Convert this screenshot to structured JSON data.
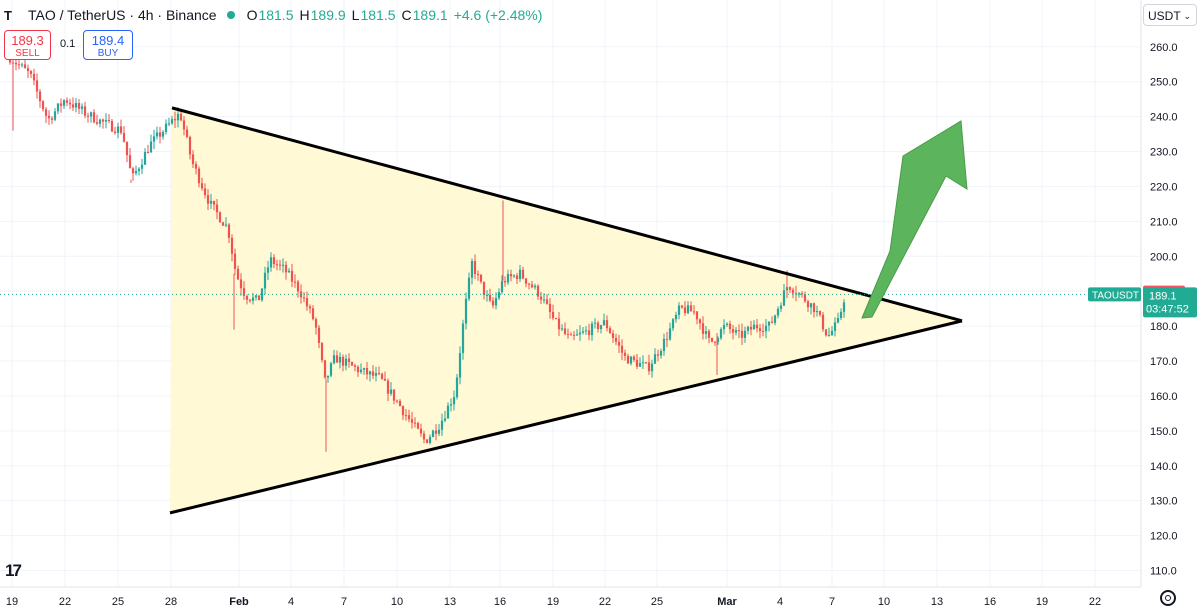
{
  "header": {
    "logo_text": "T",
    "symbol": "TAO / TetherUS · 4h · Binance",
    "ohlc": [
      {
        "label": "O",
        "value": "181.5"
      },
      {
        "label": "H",
        "value": "189.9"
      },
      {
        "label": "L",
        "value": "181.5"
      },
      {
        "label": "C",
        "value": "189.1"
      }
    ],
    "change": "+4.6 (+2.48%)"
  },
  "trade": {
    "sell_price": "189.3",
    "sell_label": "SELL",
    "spread": "0.1",
    "buy_price": "189.4",
    "buy_label": "BUY"
  },
  "currency": "USDT",
  "colors": {
    "up": "#26a69a",
    "down": "#ef5350",
    "triangle_fill": "#fff9d6",
    "arrow": "#5cb55c",
    "price_tag": "#22ab94",
    "sell_tag": "#f7525f"
  },
  "chart_data": {
    "type": "candlestick",
    "yaxis": {
      "range": [
        105,
        265
      ],
      "ticks": [
        110,
        120,
        130,
        140,
        150,
        160,
        170,
        180,
        190,
        200,
        210,
        220,
        230,
        240,
        250,
        260
      ]
    },
    "xaxis": {
      "range": [
        0,
        1137
      ],
      "ticks": [
        "19",
        "22",
        "25",
        "28",
        "Feb",
        "4",
        "7",
        "10",
        "13",
        "16",
        "19",
        "22",
        "25",
        "Mar",
        "4",
        "7",
        "10",
        "13",
        "16",
        "19",
        "22"
      ]
    },
    "price_labels": {
      "sell": "189.3",
      "last": "189.1",
      "symbol": "TAOUSDT",
      "countdown": "03:47:52"
    },
    "triangle": {
      "upper": [
        [
          172,
          242.5
        ],
        [
          962,
          181.5
        ]
      ],
      "lower": [
        [
          170,
          126.5
        ],
        [
          962,
          181.5
        ]
      ]
    },
    "key_points": [
      {
        "x": 10,
        "y": 257
      },
      {
        "x": 30,
        "y": 252
      },
      {
        "x": 48,
        "y": 239
      },
      {
        "x": 65,
        "y": 245
      },
      {
        "x": 85,
        "y": 241
      },
      {
        "x": 105,
        "y": 238
      },
      {
        "x": 122,
        "y": 236
      },
      {
        "x": 132,
        "y": 222
      },
      {
        "x": 150,
        "y": 232
      },
      {
        "x": 170,
        "y": 238
      },
      {
        "x": 180,
        "y": 241
      },
      {
        "x": 192,
        "y": 227
      },
      {
        "x": 210,
        "y": 215
      },
      {
        "x": 228,
        "y": 208
      },
      {
        "x": 236,
        "y": 195
      },
      {
        "x": 245,
        "y": 189
      },
      {
        "x": 258,
        "y": 187
      },
      {
        "x": 270,
        "y": 199
      },
      {
        "x": 285,
        "y": 196
      },
      {
        "x": 300,
        "y": 190
      },
      {
        "x": 315,
        "y": 181
      },
      {
        "x": 325,
        "y": 164
      },
      {
        "x": 335,
        "y": 171
      },
      {
        "x": 348,
        "y": 169
      },
      {
        "x": 362,
        "y": 167
      },
      {
        "x": 380,
        "y": 165
      },
      {
        "x": 398,
        "y": 158
      },
      {
        "x": 412,
        "y": 152
      },
      {
        "x": 425,
        "y": 147
      },
      {
        "x": 440,
        "y": 152
      },
      {
        "x": 455,
        "y": 161
      },
      {
        "x": 465,
        "y": 185
      },
      {
        "x": 472,
        "y": 198
      },
      {
        "x": 482,
        "y": 191
      },
      {
        "x": 492,
        "y": 185
      },
      {
        "x": 503,
        "y": 193
      },
      {
        "x": 520,
        "y": 195
      },
      {
        "x": 540,
        "y": 189
      },
      {
        "x": 555,
        "y": 181
      },
      {
        "x": 570,
        "y": 176
      },
      {
        "x": 590,
        "y": 179
      },
      {
        "x": 605,
        "y": 181
      },
      {
        "x": 625,
        "y": 171
      },
      {
        "x": 648,
        "y": 168
      },
      {
        "x": 665,
        "y": 176
      },
      {
        "x": 680,
        "y": 185
      },
      {
        "x": 695,
        "y": 184
      },
      {
        "x": 710,
        "y": 175
      },
      {
        "x": 725,
        "y": 180
      },
      {
        "x": 740,
        "y": 177
      },
      {
        "x": 755,
        "y": 180
      },
      {
        "x": 770,
        "y": 180
      },
      {
        "x": 788,
        "y": 192
      },
      {
        "x": 800,
        "y": 189
      },
      {
        "x": 815,
        "y": 185
      },
      {
        "x": 828,
        "y": 177
      },
      {
        "x": 838,
        "y": 181
      },
      {
        "x": 845,
        "y": 189
      }
    ]
  }
}
